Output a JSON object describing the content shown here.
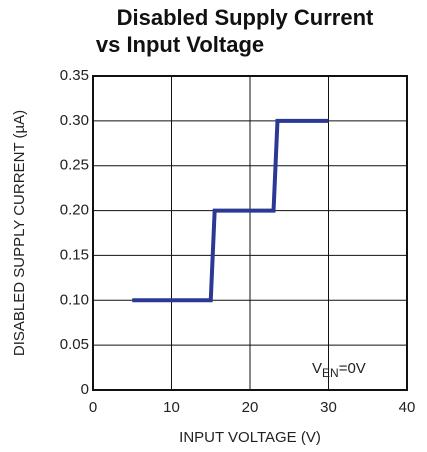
{
  "chart_data": {
    "type": "line",
    "title": [
      "Disabled Supply Current",
      "vs Input Voltage"
    ],
    "x_label": "INPUT VOLTAGE (V)",
    "y_label": "DISABLED SUPPLY CURRENT (µA)",
    "annotation": {
      "main": "V",
      "subscript": "EN",
      "suffix": "=0V"
    },
    "xlim": [
      0,
      40
    ],
    "xticks": [
      0,
      10,
      20,
      30,
      40
    ],
    "ylim": [
      0,
      0.35
    ],
    "yticks": [
      0,
      0.05,
      {
        "value": 0.1,
        "label": "0.10"
      },
      0.15,
      {
        "value": 0.2,
        "label": "0.20"
      },
      0.25,
      {
        "value": 0.3,
        "label": "0.30"
      },
      0.35
    ],
    "grid": true,
    "series": [
      {
        "color": "#2b3894",
        "x": [
          5,
          15,
          15.5,
          23,
          23.5,
          30
        ],
        "values": [
          0.1,
          0.1,
          0.2,
          0.2,
          0.3,
          0.3
        ]
      }
    ]
  }
}
